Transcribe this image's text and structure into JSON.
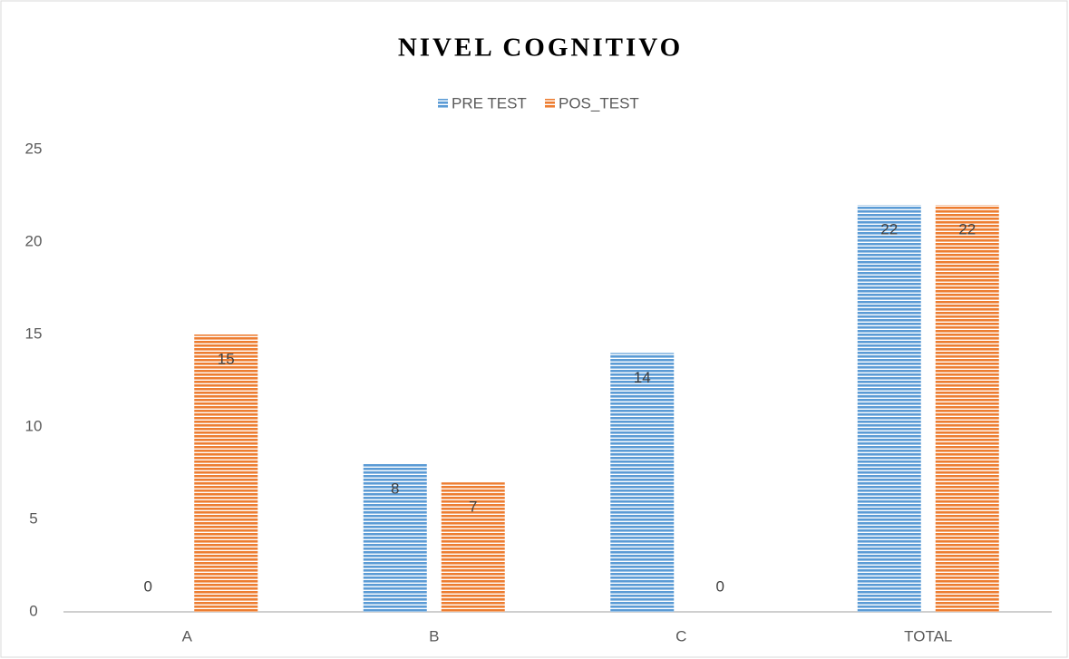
{
  "chart_data": {
    "type": "bar",
    "title": "NIVEL COGNITIVO",
    "categories": [
      "A",
      "B",
      "C",
      "TOTAL"
    ],
    "series": [
      {
        "name": "PRE TEST",
        "color": "#5b9bd5",
        "values": [
          0,
          8,
          14,
          22
        ]
      },
      {
        "name": "POS_TEST",
        "color": "#ed7d31",
        "values": [
          15,
          7,
          0,
          22
        ]
      }
    ],
    "ylim": [
      0,
      25
    ],
    "yticks": [
      0,
      5,
      10,
      15,
      20,
      25
    ],
    "grid": false,
    "legend": "top"
  }
}
